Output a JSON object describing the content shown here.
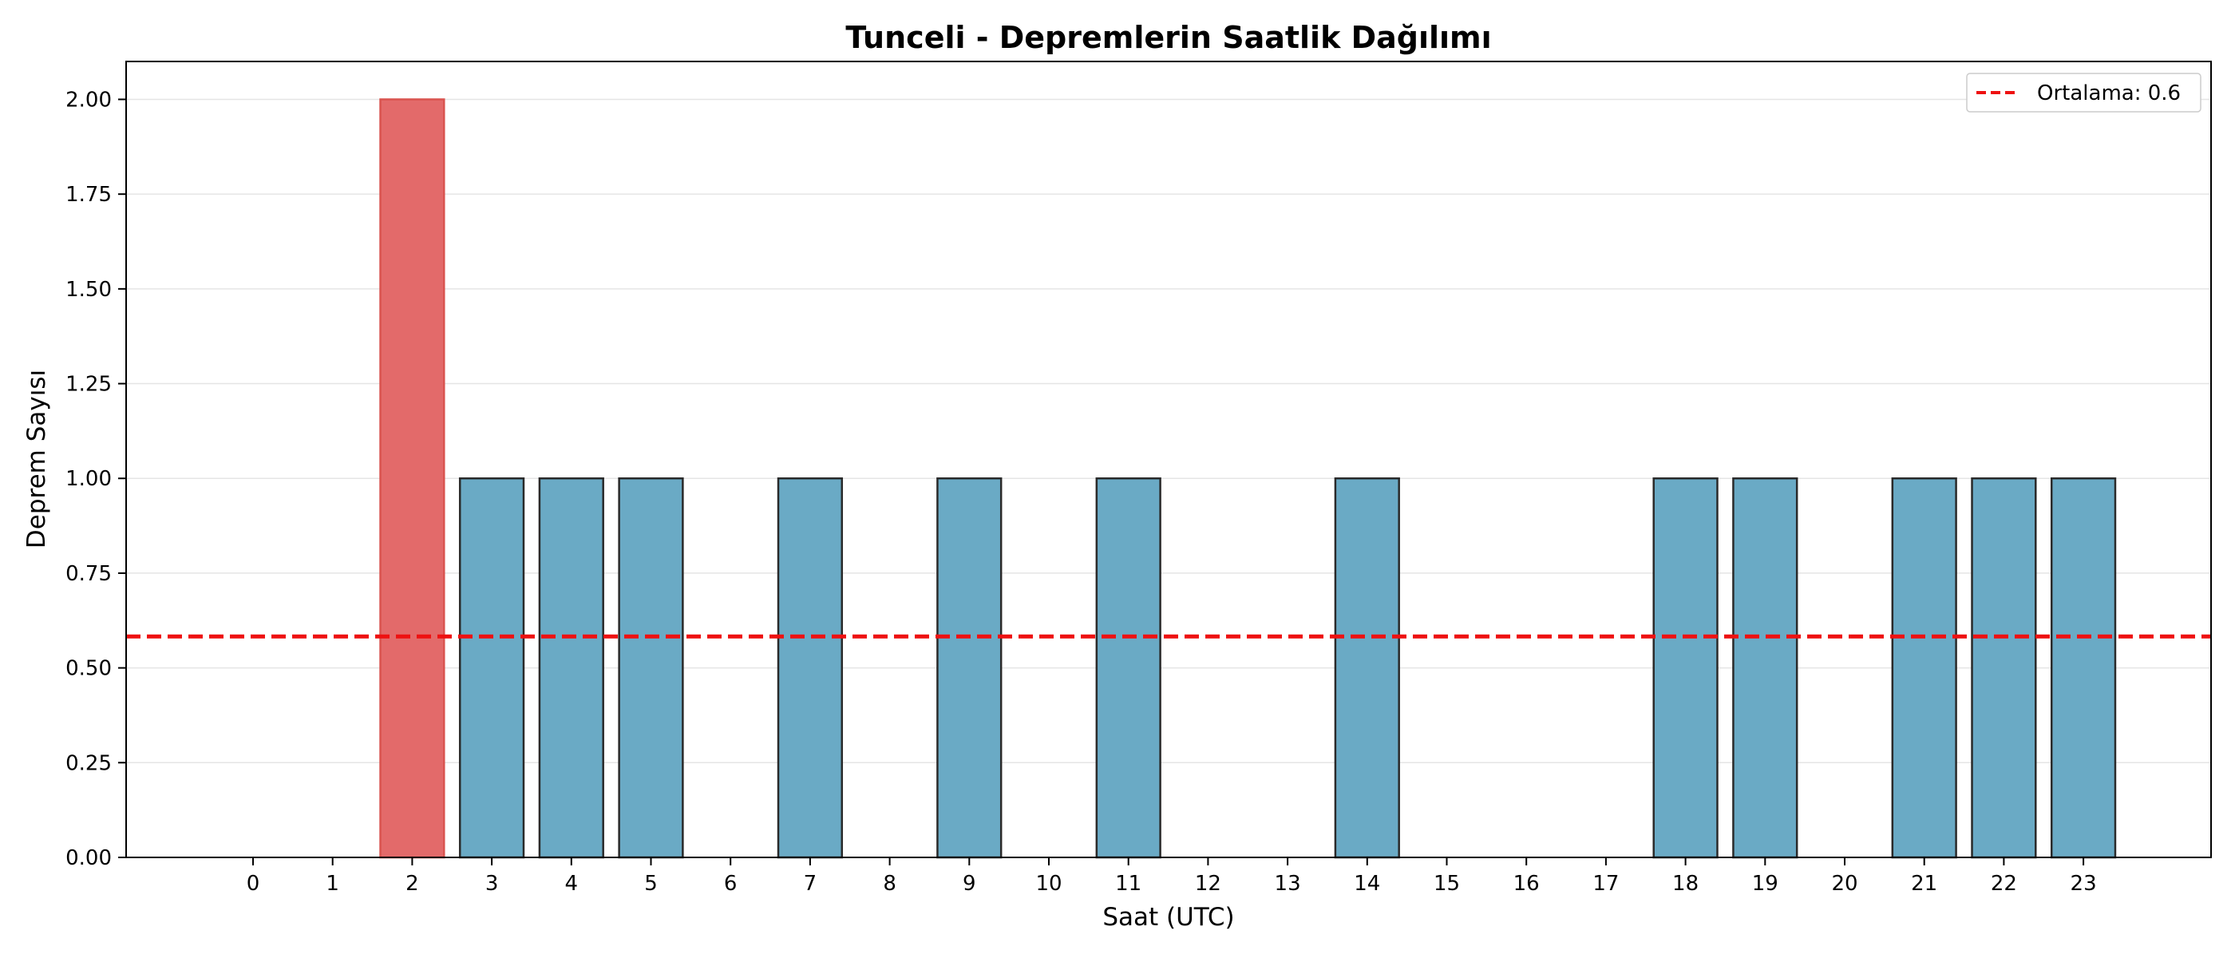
{
  "chart_data": {
    "type": "bar",
    "title": "Tunceli - Depremlerin Saatlik Dağılımı",
    "xlabel": "Saat (UTC)",
    "ylabel": "Deprem Sayısı",
    "categories": [
      "0",
      "1",
      "2",
      "3",
      "4",
      "5",
      "6",
      "7",
      "8",
      "9",
      "10",
      "11",
      "12",
      "13",
      "14",
      "15",
      "16",
      "17",
      "18",
      "19",
      "20",
      "21",
      "22",
      "23"
    ],
    "values": [
      0,
      0,
      2,
      1,
      1,
      1,
      0,
      1,
      0,
      1,
      0,
      1,
      0,
      0,
      1,
      0,
      0,
      0,
      1,
      1,
      0,
      1,
      1,
      1
    ],
    "highlight_index": 2,
    "ylim": [
      0,
      2.1
    ],
    "yticks": [
      "0.00",
      "0.25",
      "0.50",
      "0.75",
      "1.00",
      "1.25",
      "1.50",
      "1.75",
      "2.00"
    ],
    "mean_line": {
      "value": 0.583,
      "label": "Ortalama: 0.6"
    },
    "grid": "y",
    "legend_position": "top-right",
    "colors": {
      "bar": "#6aaac5",
      "highlight": "#e36a6a",
      "bar_edge": "#2a2a2a",
      "mean_line": "#ee1111",
      "grid": "#e5e5e5"
    }
  }
}
